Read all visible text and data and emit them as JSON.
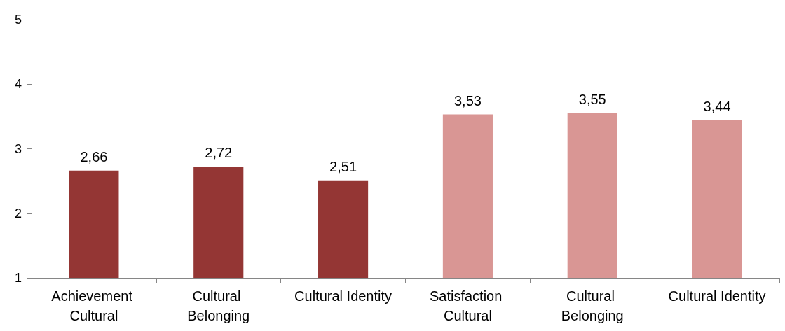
{
  "chart_data": {
    "type": "bar",
    "categories": [
      "Achievement Cultural",
      "Cultural Belonging",
      "Cultural Identity",
      "Satisfaction Cultural",
      "Cultural Belonging",
      "Cultural Identity"
    ],
    "values": [
      2.66,
      2.72,
      2.51,
      3.53,
      3.55,
      3.44
    ],
    "colors": [
      "#943634",
      "#943634",
      "#943634",
      "#d99694",
      "#d99694",
      "#d99694"
    ],
    "value_labels": [
      "2,66",
      "2,72",
      "2,51",
      "3,53",
      "3,55",
      "3,44"
    ],
    "ylim": [
      1,
      5
    ],
    "yticks": [
      1,
      2,
      3,
      4,
      5
    ],
    "grid": false
  }
}
